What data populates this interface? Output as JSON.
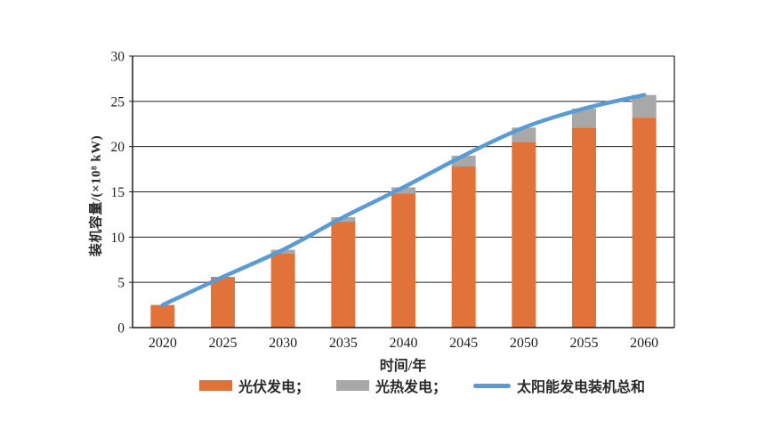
{
  "figure": {
    "background": "#ffffff",
    "grid_color": "#1f1f1f",
    "text_color": "#2a2a2a"
  },
  "chart_data": {
    "type": "bar",
    "stacked": true,
    "line_overlay": true,
    "categories": [
      "2020",
      "2025",
      "2030",
      "2035",
      "2040",
      "2045",
      "2050",
      "2055",
      "2060"
    ],
    "series": [
      {
        "name": "光伏发电",
        "type": "bar",
        "color": "#E17239",
        "values": [
          2.5,
          5.6,
          8.2,
          11.7,
          14.8,
          17.8,
          20.5,
          22.1,
          23.2
        ]
      },
      {
        "name": "光热发电",
        "type": "bar",
        "color": "#A8A8A8",
        "values": [
          0,
          0,
          0.4,
          0.5,
          0.7,
          1.2,
          1.6,
          2.1,
          2.5
        ]
      },
      {
        "name": "太阳能发电装机总和",
        "type": "line",
        "color": "#5B9BD5",
        "values": [
          2.5,
          5.6,
          8.6,
          12.2,
          15.5,
          19.0,
          22.1,
          24.2,
          25.7
        ]
      }
    ],
    "xlabel": "时间/年",
    "ylabel": "装机容量/(×10⁸ kW)",
    "ylim": [
      0,
      30
    ],
    "y_ticks": [
      0,
      5,
      10,
      15,
      20,
      25,
      30
    ],
    "grid": true,
    "legend_position": "bottom"
  },
  "legend": {
    "items": [
      {
        "label": "光伏发电；",
        "swatch": "bar",
        "color": "#E17239"
      },
      {
        "label": "光热发电；",
        "swatch": "bar",
        "color": "#A8A8A8"
      },
      {
        "label": "太阳能发电装机总和",
        "swatch": "line",
        "color": "#5B9BD5"
      }
    ]
  }
}
